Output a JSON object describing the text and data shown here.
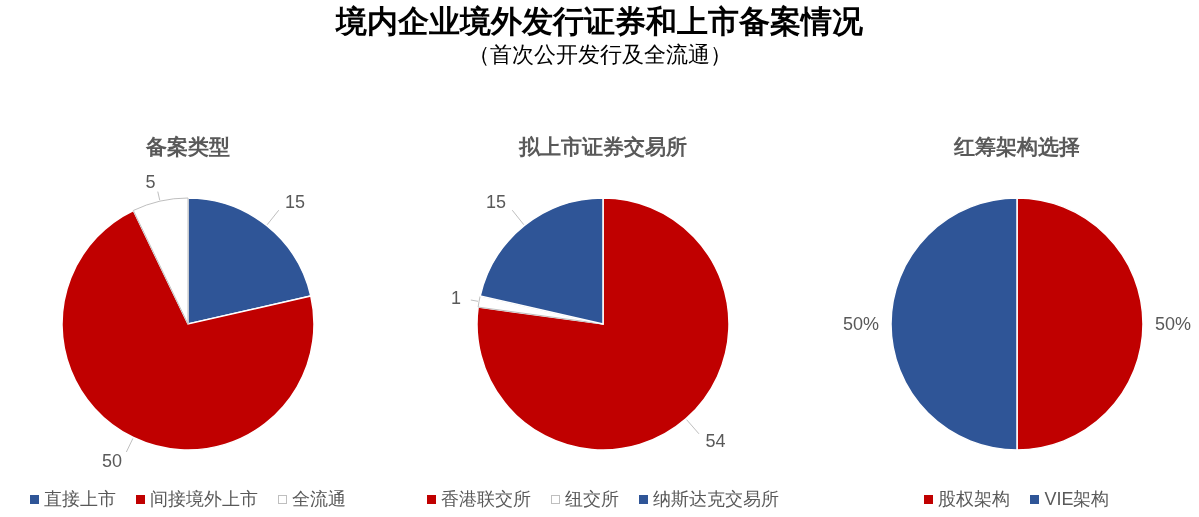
{
  "chart_data": [
    {
      "type": "other",
      "title": "境内企业境外发行证券和上市备案情况",
      "subtitle": "（首次公开发行及全流通）"
    },
    {
      "type": "pie",
      "title": "备案类型",
      "categories": [
        "直接上市",
        "间接境外上市",
        "全流通"
      ],
      "values": [
        15,
        50,
        5
      ],
      "colors": [
        "#2f5597",
        "#c00000",
        "#ffffff"
      ],
      "data_labels": true,
      "legend": "bottom"
    },
    {
      "type": "pie",
      "title": "拟上市证券交易所",
      "categories": [
        "香港联交所",
        "纽交所",
        "纳斯达克交易所"
      ],
      "values": [
        54,
        1,
        15
      ],
      "colors": [
        "#c00000",
        "#ffffff",
        "#2f5597"
      ],
      "data_labels": true,
      "legend": "bottom"
    },
    {
      "type": "pie",
      "title": "红筹架构选择",
      "categories": [
        "股权架构",
        "VIE架构"
      ],
      "values": [
        50,
        50
      ],
      "colors": [
        "#c00000",
        "#2f5597"
      ],
      "value_labels": [
        "50%",
        "50%"
      ],
      "legend": "bottom"
    }
  ]
}
